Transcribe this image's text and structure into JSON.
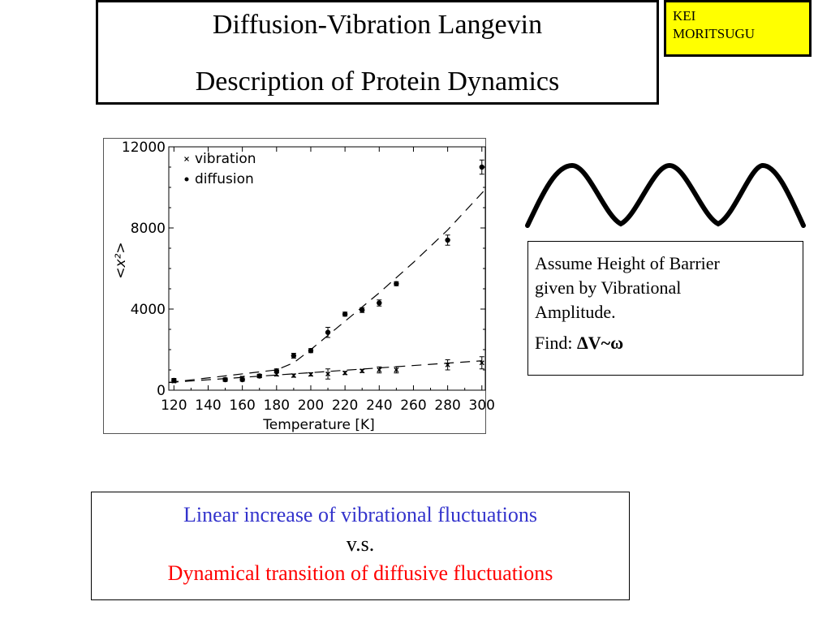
{
  "title": {
    "line1": "Diffusion-Vibration Langevin",
    "line2": "Description of Protein Dynamics"
  },
  "author": {
    "line1": "KEI",
    "line2": "MORITSUGU"
  },
  "note": {
    "line1": "Assume Height of Barrier",
    "line2": "given by Vibrational",
    "line3": "Amplitude.",
    "find_label": "Find:",
    "find_formula": "ΔV~ω"
  },
  "conclusion": {
    "line1": "Linear increase of vibrational fluctuations",
    "line2": "v.s.",
    "line3": "Dynamical transition of diffusive fluctuations",
    "line1_color": "#3333cc",
    "line3_color": "#ff0000"
  },
  "chart_data": {
    "type": "scatter",
    "xlabel": "Temperature  [K]",
    "ylabel": "<x²>",
    "xlim": [
      117,
      302
    ],
    "ylim": [
      0,
      12000
    ],
    "xticks": [
      120,
      140,
      160,
      180,
      200,
      220,
      240,
      260,
      280,
      300
    ],
    "yticks": [
      0,
      4000,
      8000,
      12000
    ],
    "legend_position": "top-left",
    "series": [
      {
        "name": "vibration",
        "marker": "x",
        "x": [
          120,
          150,
          160,
          170,
          180,
          190,
          200,
          210,
          220,
          230,
          240,
          250,
          280,
          300
        ],
        "y": [
          450,
          520,
          600,
          700,
          780,
          720,
          780,
          800,
          850,
          950,
          1000,
          1000,
          1250,
          1350
        ],
        "err": [
          80,
          80,
          80,
          80,
          80,
          80,
          80,
          250,
          80,
          80,
          150,
          150,
          250,
          300
        ]
      },
      {
        "name": "diffusion",
        "marker": "dot",
        "x": [
          120,
          150,
          160,
          170,
          180,
          190,
          200,
          210,
          220,
          230,
          240,
          250,
          280,
          300
        ],
        "y": [
          480,
          520,
          520,
          700,
          950,
          1700,
          1950,
          2850,
          3750,
          3950,
          4300,
          5250,
          7400,
          11000
        ],
        "err": [
          100,
          80,
          80,
          80,
          100,
          120,
          100,
          250,
          100,
          120,
          150,
          100,
          250,
          350
        ]
      }
    ],
    "fit_lines": [
      {
        "name": "vibration fit",
        "x": [
          117,
          300
        ],
        "y": [
          380,
          1450
        ]
      },
      {
        "name": "diffusion fit",
        "x": [
          117,
          180,
          190,
          200,
          220,
          240,
          260,
          280,
          302
        ],
        "y": [
          380,
          1000,
          1350,
          2000,
          3400,
          4800,
          6300,
          7900,
          9900
        ]
      }
    ]
  }
}
